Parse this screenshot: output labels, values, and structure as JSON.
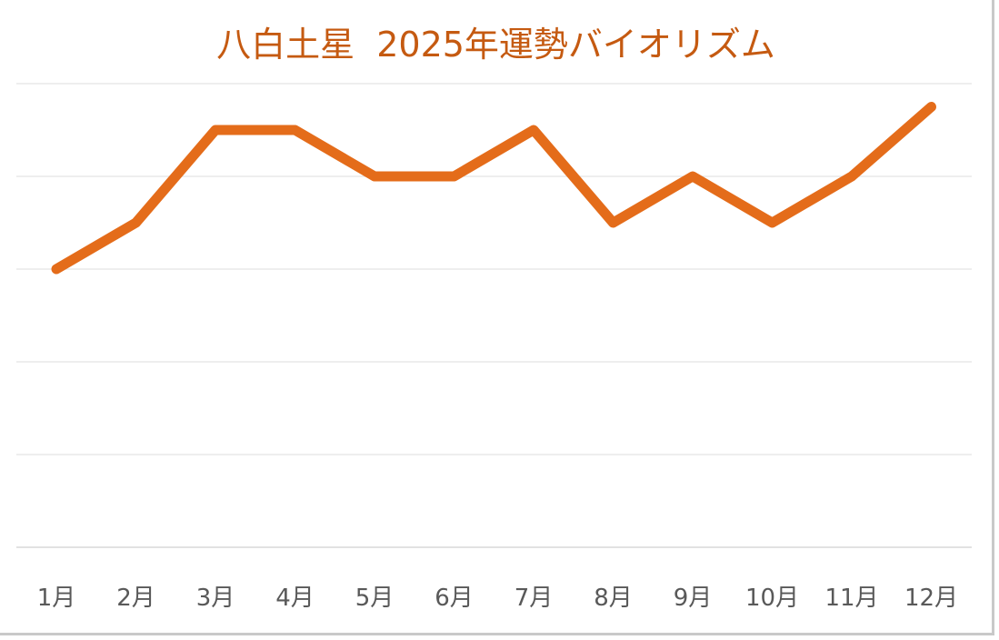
{
  "chart_data": {
    "type": "line",
    "title": "八白土星  2025年運勢バイオリズム",
    "categories": [
      "1月",
      "2月",
      "3月",
      "4月",
      "5月",
      "6月",
      "7月",
      "8月",
      "9月",
      "10月",
      "11月",
      "12月"
    ],
    "series": [
      {
        "values": [
          3,
          3.5,
          4.5,
          4.5,
          4,
          4,
          4.5,
          3.5,
          4,
          3.5,
          4,
          4.75
        ]
      }
    ],
    "ylim": [
      0,
      5
    ],
    "y_gridlines": [
      0,
      1,
      2,
      3,
      4,
      5
    ],
    "y_tick_labels_shown": false,
    "legend": "none",
    "grid": true,
    "colors": {
      "line": "#e46c1a",
      "title": "#c55a11",
      "grid": "#e3e3e3",
      "tick": "#595959"
    }
  }
}
